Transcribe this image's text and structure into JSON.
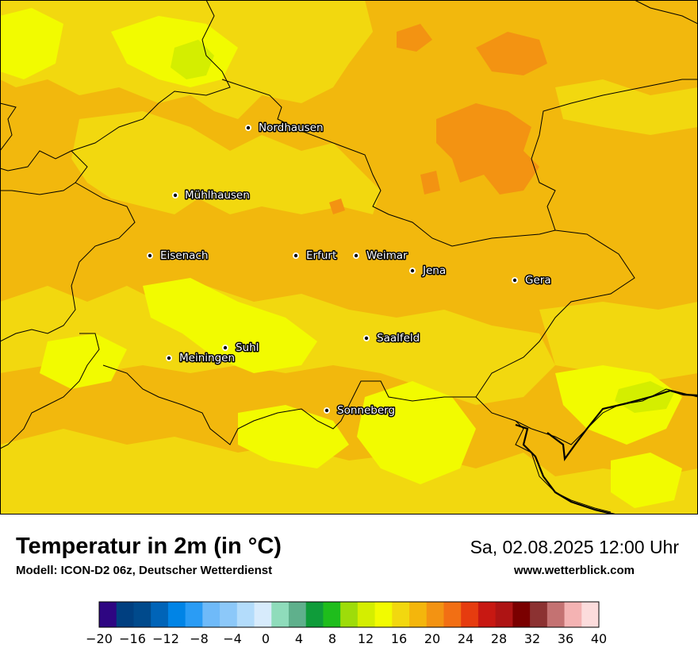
{
  "title": "Temperatur in 2m (in °C)",
  "model": "Modell: ICON-D2 06z, Deutscher Wetterdienst",
  "datetime": "Sa, 02.08.2025 12:00 Uhr",
  "website": "www.wetterblick.com",
  "cities": [
    {
      "name": "Nordhausen"
    },
    {
      "name": "Mühlhausen"
    },
    {
      "name": "Eisenach"
    },
    {
      "name": "Erfurt"
    },
    {
      "name": "Weimar"
    },
    {
      "name": "Jena"
    },
    {
      "name": "Gera"
    },
    {
      "name": "Suhl"
    },
    {
      "name": "Meiningen"
    },
    {
      "name": "Saalfeld"
    },
    {
      "name": "Sonneberg"
    }
  ],
  "legend": {
    "min": -20,
    "max": 40,
    "step": 2,
    "tick_labels": [
      "−20",
      "−16",
      "−12",
      "−8",
      "−4",
      "0",
      "4",
      "8",
      "12",
      "16",
      "20",
      "24",
      "28",
      "32",
      "36",
      "40"
    ],
    "colors": [
      "#2e0682",
      "#003f80",
      "#004a8c",
      "#0064b8",
      "#0084e6",
      "#2a9cf5",
      "#6fbaf9",
      "#8cc8f9",
      "#b3dcfb",
      "#d7ebfc",
      "#8fdcbb",
      "#5fb08c",
      "#0f9c3a",
      "#1fbd1c",
      "#9edc0a",
      "#d4ee00",
      "#f2fb00",
      "#f2d80f",
      "#f4b60c",
      "#f39312",
      "#f26f14",
      "#e63c0f",
      "#c81812",
      "#ae1414",
      "#7a0000",
      "#8c3232",
      "#c47272",
      "#f4b3b3",
      "#fcdcdc"
    ]
  },
  "palette": {
    "map_base": "#f2b80d",
    "map_yellow": "#f2d80f",
    "map_bright": "#f2fb00",
    "map_green": "#d4ee00",
    "map_orange": "#f39312"
  }
}
